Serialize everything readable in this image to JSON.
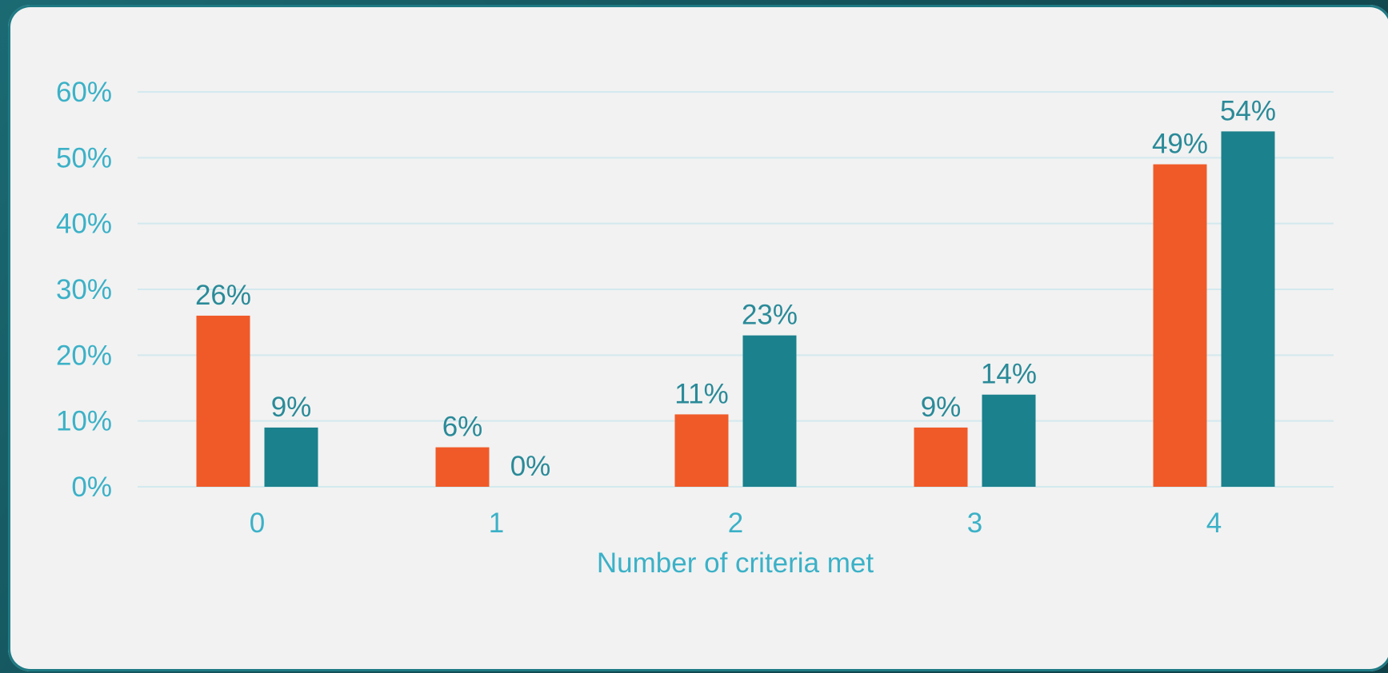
{
  "colors": {
    "series_a": "#f05a28",
    "series_b": "#1b818c",
    "axis_text": "#3bb1c7",
    "label_text": "#2a8a98",
    "grid": "#d3e9ee"
  },
  "chart_data": {
    "type": "bar",
    "title": "",
    "xlabel": "Number of criteria met",
    "ylabel": "",
    "categories": [
      "0",
      "1",
      "2",
      "3",
      "4"
    ],
    "series": [
      {
        "values": [
          26,
          6,
          11,
          9,
          49
        ],
        "labels": [
          "26%",
          "6%",
          "11%",
          "9%",
          "49%"
        ]
      },
      {
        "values": [
          9,
          0,
          23,
          14,
          54
        ],
        "labels": [
          "9%",
          "0%",
          "23%",
          "14%",
          "54%"
        ]
      }
    ],
    "ylim": [
      0,
      60
    ],
    "yticks": [
      0,
      10,
      20,
      30,
      40,
      50,
      60
    ],
    "ytick_labels": [
      "0%",
      "10%",
      "20%",
      "30%",
      "40%",
      "50%",
      "60%"
    ],
    "grid": true,
    "legend": "none"
  }
}
